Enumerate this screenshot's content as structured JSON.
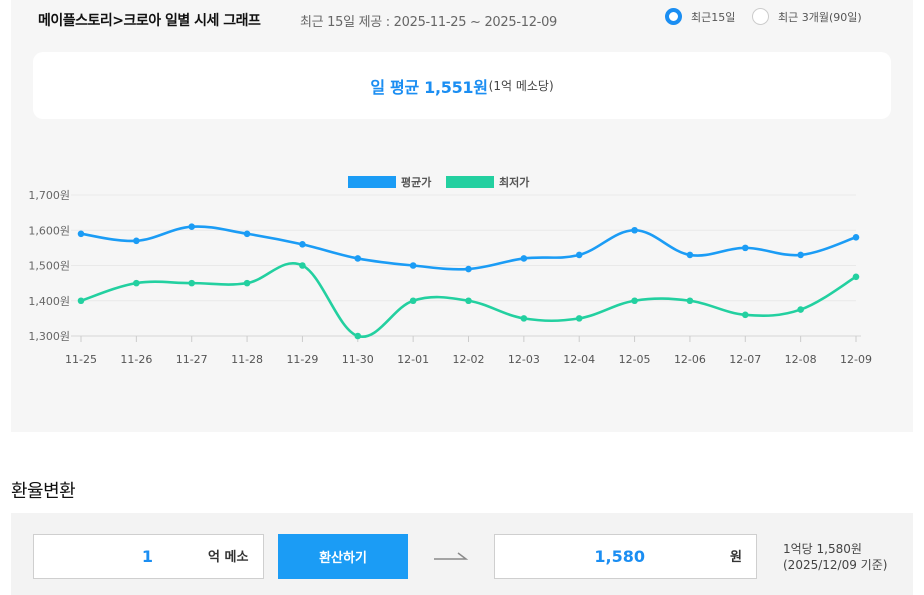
{
  "header": {
    "title": "메이플스토리>크로아 일별 시세 그래프",
    "subtitle": "최근 15일 제공 : 2025-11-25 ~ 2025-12-09"
  },
  "range_options": [
    {
      "label": "최근15일",
      "selected": true
    },
    {
      "label": "최근 3개월(90일)",
      "selected": false
    }
  ],
  "average": {
    "main": "일 평균 1,551원",
    "unit": "(1억 메소당)"
  },
  "chart_data": {
    "type": "line",
    "categories": [
      "11-25",
      "11-26",
      "11-27",
      "11-28",
      "11-29",
      "11-30",
      "12-01",
      "12-02",
      "12-03",
      "12-04",
      "12-05",
      "12-06",
      "12-07",
      "12-08",
      "12-09"
    ],
    "series": [
      {
        "name": "평균가",
        "color": "#1b9cf5",
        "values": [
          1590,
          1570,
          1610,
          1590,
          1560,
          1520,
          1500,
          1490,
          1520,
          1530,
          1600,
          1530,
          1550,
          1530,
          1580
        ]
      },
      {
        "name": "최저가",
        "color": "#23d0a0",
        "values": [
          1400,
          1450,
          1450,
          1450,
          1500,
          1300,
          1400,
          1400,
          1350,
          1350,
          1400,
          1400,
          1360,
          1375,
          1468
        ]
      }
    ],
    "ylim": [
      1300,
      1700
    ],
    "yticks": [
      1300,
      1400,
      1500,
      1600,
      1700
    ],
    "ytick_labels": [
      "1,300원",
      "1,400원",
      "1,500원",
      "1,600원",
      "1,700원"
    ],
    "legend_position": "top-center",
    "grid": true
  },
  "exchange": {
    "title": "환율변환",
    "input_value": "1",
    "input_unit": "억 메소",
    "button_label": "환산하기",
    "output_value": "1,580",
    "output_unit": "원",
    "rate_line1": "1억당 1,580원",
    "rate_line2": "(2025/12/09 기준)"
  }
}
